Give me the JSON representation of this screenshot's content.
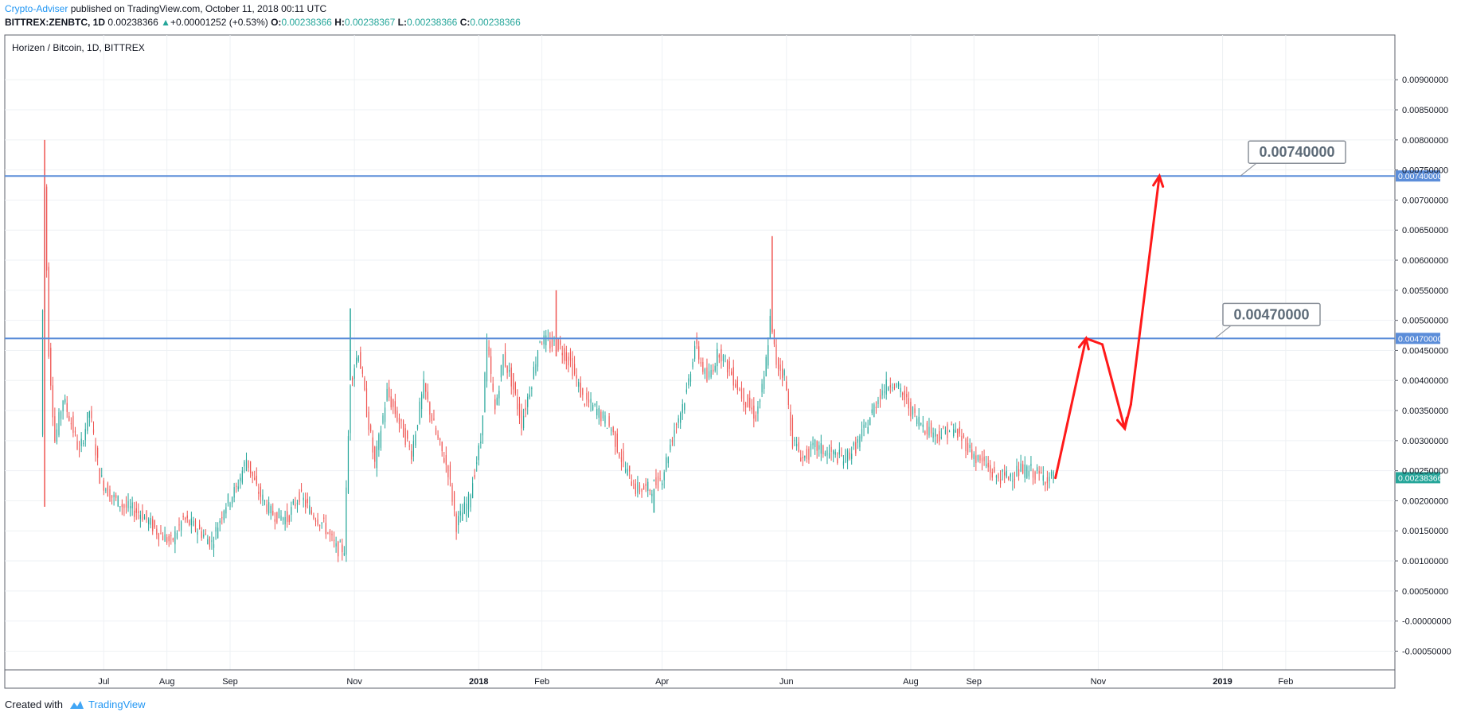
{
  "header": {
    "author": "Crypto-Adviser",
    "published_text": " published on TradingView.com, October 11, 2018 00:11 UTC",
    "symbol": "BITTREX:ZENBTC, 1D",
    "last": "0.00238366",
    "change_arrow": "▲",
    "change": "+0.00001252 (+0.53%)",
    "o_label": "O:",
    "o_value": "0.00238366",
    "h_label": "H:",
    "h_value": "0.00238367",
    "l_label": "L:",
    "l_value": "0.00238366",
    "c_label": "C:",
    "c_value": "0.00238366"
  },
  "footer": {
    "created_with": "Created with",
    "brand": "TradingView"
  },
  "chart_data": {
    "type": "line",
    "title": "Horizen / Bitcoin, 1D, BITTREX",
    "x_tick_labels": [
      "Jul",
      "Aug",
      "Sep",
      "Nov",
      "2018",
      "Feb",
      "Apr",
      "Jun",
      "Aug",
      "Sep",
      "Nov",
      "2019",
      "Feb"
    ],
    "x_ticks_bold": [
      false,
      false,
      false,
      false,
      true,
      false,
      false,
      false,
      false,
      false,
      false,
      true,
      false
    ],
    "y_tick_labels": [
      "0.00900000",
      "0.00850000",
      "0.00800000",
      "0.00750000",
      "0.00700000",
      "0.00650000",
      "0.00600000",
      "0.00550000",
      "0.00500000",
      "0.00450000",
      "0.00400000",
      "0.00350000",
      "0.00300000",
      "0.00250000",
      "0.00200000",
      "0.00150000",
      "0.00100000",
      "0.00050000",
      "-0.00000000",
      "-0.00050000"
    ],
    "ylim": [
      -0.0006,
      0.0094
    ],
    "grid": true,
    "horizontal_levels": [
      {
        "label": "0.00740000",
        "value": 0.0074,
        "color": "#5b8dd9"
      },
      {
        "label": "0.00470000",
        "value": 0.0047,
        "color": "#5b8dd9"
      }
    ],
    "last_price": {
      "label": "0.00238366",
      "value": 0.00238366,
      "color": "#26a69a"
    },
    "up_color": "#26a69a",
    "down_color": "#ef5350",
    "projection_color": "#ff1a1a",
    "series": [
      {
        "values": [
          [
            "2017-06-01",
            0.0031
          ],
          [
            "2017-06-03",
            0.0072
          ],
          [
            "2017-06-05",
            0.0045
          ],
          [
            "2017-06-08",
            0.003
          ],
          [
            "2017-06-12",
            0.0037
          ],
          [
            "2017-06-16",
            0.0033
          ],
          [
            "2017-06-20",
            0.0028
          ],
          [
            "2017-06-25",
            0.0035
          ],
          [
            "2017-06-30",
            0.0024
          ],
          [
            "2017-07-05",
            0.0021
          ],
          [
            "2017-07-12",
            0.0019
          ],
          [
            "2017-07-20",
            0.0018
          ],
          [
            "2017-07-28",
            0.0015
          ],
          [
            "2017-08-04",
            0.0013
          ],
          [
            "2017-08-10",
            0.0017
          ],
          [
            "2017-08-18",
            0.0015
          ],
          [
            "2017-08-24",
            0.0013
          ],
          [
            "2017-08-30",
            0.0019
          ],
          [
            "2017-09-05",
            0.0022
          ],
          [
            "2017-09-10",
            0.0027
          ],
          [
            "2017-09-15",
            0.0022
          ],
          [
            "2017-09-22",
            0.0018
          ],
          [
            "2017-09-30",
            0.0017
          ],
          [
            "2017-10-06",
            0.0021
          ],
          [
            "2017-10-12",
            0.0018
          ],
          [
            "2017-10-18",
            0.0016
          ],
          [
            "2017-10-24",
            0.0012
          ],
          [
            "2017-10-28",
            0.0012
          ],
          [
            "2017-10-31",
            0.004
          ],
          [
            "2017-11-04",
            0.0045
          ],
          [
            "2017-11-08",
            0.0035
          ],
          [
            "2017-11-12",
            0.0026
          ],
          [
            "2017-11-18",
            0.0038
          ],
          [
            "2017-11-24",
            0.0033
          ],
          [
            "2017-11-30",
            0.0028
          ],
          [
            "2017-12-06",
            0.0039
          ],
          [
            "2017-12-12",
            0.0031
          ],
          [
            "2017-12-18",
            0.0025
          ],
          [
            "2017-12-22",
            0.0016
          ],
          [
            "2017-12-28",
            0.002
          ],
          [
            "2018-01-03",
            0.003
          ],
          [
            "2018-01-06",
            0.0046
          ],
          [
            "2018-01-10",
            0.0035
          ],
          [
            "2018-01-14",
            0.0044
          ],
          [
            "2018-01-18",
            0.004
          ],
          [
            "2018-01-23",
            0.0033
          ],
          [
            "2018-01-28",
            0.004
          ],
          [
            "2018-02-01",
            0.0047
          ],
          [
            "2018-02-06",
            0.0046
          ],
          [
            "2018-02-10",
            0.0046
          ],
          [
            "2018-02-16",
            0.0043
          ],
          [
            "2018-02-22",
            0.0037
          ],
          [
            "2018-03-01",
            0.0035
          ],
          [
            "2018-03-08",
            0.0032
          ],
          [
            "2018-03-14",
            0.0026
          ],
          [
            "2018-03-20",
            0.0022
          ],
          [
            "2018-03-27",
            0.0022
          ],
          [
            "2018-04-02",
            0.0024
          ],
          [
            "2018-04-08",
            0.0032
          ],
          [
            "2018-04-14",
            0.0038
          ],
          [
            "2018-04-18",
            0.0046
          ],
          [
            "2018-04-24",
            0.004
          ],
          [
            "2018-04-30",
            0.0045
          ],
          [
            "2018-05-06",
            0.0041
          ],
          [
            "2018-05-12",
            0.0037
          ],
          [
            "2018-05-18",
            0.0034
          ],
          [
            "2018-05-22",
            0.004
          ],
          [
            "2018-05-25",
            0.005
          ],
          [
            "2018-05-28",
            0.0043
          ],
          [
            "2018-06-01",
            0.0041
          ],
          [
            "2018-06-05",
            0.003
          ],
          [
            "2018-06-10",
            0.0027
          ],
          [
            "2018-06-16",
            0.0029
          ],
          [
            "2018-06-22",
            0.0028
          ],
          [
            "2018-06-30",
            0.0027
          ],
          [
            "2018-07-06",
            0.0029
          ],
          [
            "2018-07-12",
            0.0033
          ],
          [
            "2018-07-18",
            0.0038
          ],
          [
            "2018-07-24",
            0.004
          ],
          [
            "2018-07-30",
            0.0037
          ],
          [
            "2018-08-04",
            0.0034
          ],
          [
            "2018-08-10",
            0.0032
          ],
          [
            "2018-08-16",
            0.0031
          ],
          [
            "2018-08-22",
            0.0032
          ],
          [
            "2018-08-28",
            0.003
          ],
          [
            "2018-09-03",
            0.0027
          ],
          [
            "2018-09-08",
            0.0026
          ],
          [
            "2018-09-12",
            0.0024
          ],
          [
            "2018-09-18",
            0.0024
          ],
          [
            "2018-09-24",
            0.0025
          ],
          [
            "2018-09-30",
            0.0025
          ],
          [
            "2018-10-05",
            0.0024
          ],
          [
            "2018-10-11",
            0.00238366
          ]
        ]
      }
    ],
    "projection_path": [
      [
        "2018-10-11",
        0.00238
      ],
      [
        "2018-10-26",
        0.0047
      ],
      [
        "2018-11-03",
        0.0046
      ],
      [
        "2018-11-14",
        0.0032
      ],
      [
        "2018-11-17",
        0.0036
      ],
      [
        "2018-12-01",
        0.0074
      ]
    ]
  }
}
